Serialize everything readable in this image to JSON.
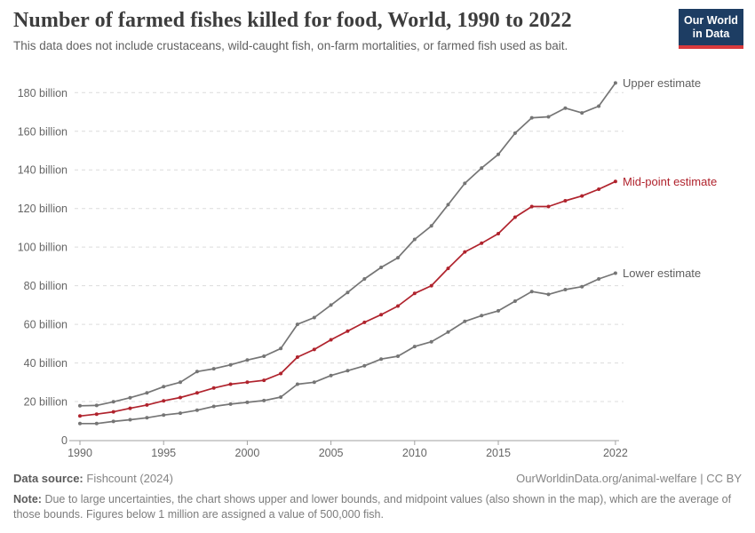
{
  "header": {
    "title": "Number of farmed fishes killed for food, World, 1990 to 2022",
    "subtitle": "This data does not include crustaceans, wild-caught fish, on-farm mortalities, or farmed fish used as bait.",
    "logo": {
      "line1": "Our World",
      "line2": "in Data",
      "bg_color": "#1d3d63",
      "bar_color": "#d93a3d"
    }
  },
  "chart_data": {
    "type": "line",
    "title": "Number of farmed fishes killed for food, World, 1990 to 2022",
    "xlabel": "",
    "ylabel": "",
    "unit": "billion fishes",
    "x": [
      1990,
      1991,
      1992,
      1993,
      1994,
      1995,
      1996,
      1997,
      1998,
      1999,
      2000,
      2001,
      2002,
      2003,
      2004,
      2005,
      2006,
      2007,
      2008,
      2009,
      2010,
      2011,
      2012,
      2013,
      2014,
      2015,
      2016,
      2017,
      2018,
      2019,
      2020,
      2021,
      2022
    ],
    "series": [
      {
        "name": "Upper estimate",
        "color": "#757575",
        "label_color": "#5f5f5f",
        "values": [
          17.8,
          18,
          19.9,
          22,
          24.5,
          27.7,
          30,
          35.5,
          37,
          39,
          41.5,
          43.5,
          47.5,
          60,
          63.5,
          70,
          76.5,
          83.5,
          89.5,
          94.5,
          104,
          111,
          122,
          133,
          141,
          148,
          159,
          167,
          167.5,
          172,
          169.5,
          173,
          185
        ]
      },
      {
        "name": "Mid-point estimate",
        "color": "#b0232d",
        "label_color": "#b0232d",
        "values": [
          12.5,
          13.5,
          14.7,
          16.5,
          18.2,
          20.4,
          22.1,
          24.5,
          27,
          29,
          30,
          31,
          34.5,
          43,
          47,
          52,
          56.5,
          61,
          65,
          69.5,
          76,
          80,
          89,
          97.5,
          102,
          107,
          115.5,
          121,
          121,
          124,
          126.5,
          130,
          134
        ]
      },
      {
        "name": "Lower estimate",
        "color": "#757575",
        "label_color": "#5f5f5f",
        "values": [
          8.6,
          8.6,
          9.7,
          10.6,
          11.6,
          13,
          14,
          15.5,
          17.5,
          18.7,
          19.6,
          20.5,
          22.3,
          29,
          30,
          33.5,
          36,
          38.5,
          42,
          43.5,
          48.5,
          51,
          56,
          61.5,
          64.5,
          67,
          72,
          77,
          75.5,
          78,
          79.5,
          83.5,
          86.5
        ]
      }
    ],
    "ylim": [
      0,
      190
    ],
    "yticks": [
      {
        "v": 0,
        "label": "0"
      },
      {
        "v": 20,
        "label": "20 billion"
      },
      {
        "v": 40,
        "label": "40 billion"
      },
      {
        "v": 60,
        "label": "60 billion"
      },
      {
        "v": 80,
        "label": "80 billion"
      },
      {
        "v": 100,
        "label": "100 billion"
      },
      {
        "v": 120,
        "label": "120 billion"
      },
      {
        "v": 140,
        "label": "140 billion"
      },
      {
        "v": 160,
        "label": "160 billion"
      },
      {
        "v": 180,
        "label": "180 billion"
      }
    ],
    "xticks": [
      {
        "v": 1990,
        "label": "1990"
      },
      {
        "v": 1995,
        "label": "1995"
      },
      {
        "v": 2000,
        "label": "2000"
      },
      {
        "v": 2005,
        "label": "2005"
      },
      {
        "v": 2010,
        "label": "2010"
      },
      {
        "v": 2015,
        "label": "2015"
      },
      {
        "v": 2022,
        "label": "2022"
      }
    ],
    "grid": "horizontal-dashed",
    "legend_position": "right-end-labels"
  },
  "footer": {
    "source_label": "Data source:",
    "source_value": "Fishcount (2024)",
    "attribution": "OurWorldinData.org/animal-welfare | CC BY",
    "note_label": "Note:",
    "note_text": "Due to large uncertainties, the chart shows upper and lower bounds, and midpoint values (also shown in the map), which are the average of those bounds. Figures below 1 million are assigned a value of 500,000 fish."
  }
}
